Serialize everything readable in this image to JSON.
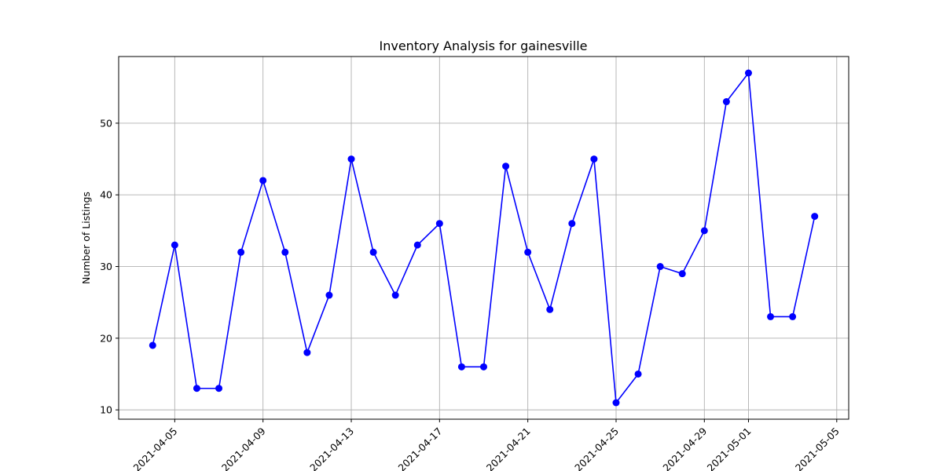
{
  "chart_data": {
    "type": "line",
    "title": "Inventory Analysis for gainesville",
    "xlabel": "",
    "ylabel": "Number of Listings",
    "grid": true,
    "x_range": [
      "2021-04-02T11:00",
      "2021-05-05T13:00"
    ],
    "ylim": [
      8.7,
      59.3
    ],
    "x_ticks": [
      "2021-04-05",
      "2021-04-09",
      "2021-04-13",
      "2021-04-17",
      "2021-04-21",
      "2021-04-25",
      "2021-04-29",
      "2021-05-01",
      "2021-05-05"
    ],
    "y_ticks": [
      10,
      20,
      30,
      40,
      50
    ],
    "colors": {
      "line": "#0000ff",
      "marker": "#0000ff",
      "grid": "#b0b0b0"
    },
    "series": [
      {
        "x": [
          "2021-04-04",
          "2021-04-05",
          "2021-04-06",
          "2021-04-07",
          "2021-04-08",
          "2021-04-09",
          "2021-04-10",
          "2021-04-11",
          "2021-04-12",
          "2021-04-13",
          "2021-04-14",
          "2021-04-15",
          "2021-04-16",
          "2021-04-17",
          "2021-04-18",
          "2021-04-19",
          "2021-04-20",
          "2021-04-21",
          "2021-04-22",
          "2021-04-23",
          "2021-04-24",
          "2021-04-25",
          "2021-04-26",
          "2021-04-27",
          "2021-04-28",
          "2021-04-29",
          "2021-04-30",
          "2021-05-01",
          "2021-05-02",
          "2021-05-03",
          "2021-05-04"
        ],
        "values": [
          19,
          33,
          13,
          13,
          32,
          42,
          32,
          18,
          26,
          45,
          32,
          26,
          33,
          36,
          16,
          16,
          44,
          32,
          24,
          36,
          45,
          11,
          15,
          30,
          29,
          35,
          53,
          57,
          23,
          23,
          37
        ]
      }
    ]
  }
}
